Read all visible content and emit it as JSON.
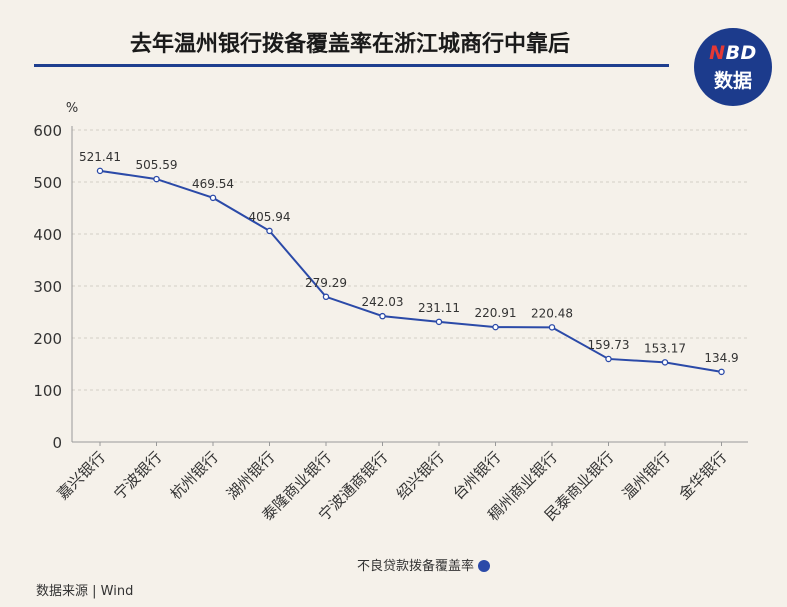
{
  "title": "去年温州银行拨备覆盖率在浙江城商行中靠后",
  "logo": {
    "line1_n": "N",
    "line1_rest": "BD",
    "line2": "数据"
  },
  "source": "数据来源 | Wind",
  "colors": {
    "line": "#2b4aa8",
    "title_rule": "#1f3f8f",
    "logo_bg": "#1c3b8c",
    "background": "#f5f1ea"
  },
  "chart_data": {
    "type": "line",
    "title": "去年温州银行拨备覆盖率在浙江城商行中靠后",
    "ylabel": "%",
    "ylim": [
      0,
      600
    ],
    "yticks": [
      0,
      100,
      200,
      300,
      400,
      500,
      600
    ],
    "grid": true,
    "legend": "bottom",
    "categories": [
      "嘉兴银行",
      "宁波银行",
      "杭州银行",
      "湖州银行",
      "泰隆商业银行",
      "宁波通商银行",
      "绍兴银行",
      "台州银行",
      "稠州商业银行",
      "民泰商业银行",
      "温州银行",
      "金华银行"
    ],
    "series": [
      {
        "name": "不良贷款拨备覆盖率",
        "values": [
          521.41,
          505.59,
          469.54,
          405.94,
          279.29,
          242.03,
          231.11,
          220.91,
          220.48,
          159.73,
          153.17,
          134.9
        ],
        "labels": [
          "521.41",
          "505.59",
          "469.54",
          "405.94",
          "279.29",
          "242.03",
          "231.11",
          "220.91",
          "220.48",
          "159.73",
          "153.17",
          "134.9"
        ]
      }
    ]
  }
}
